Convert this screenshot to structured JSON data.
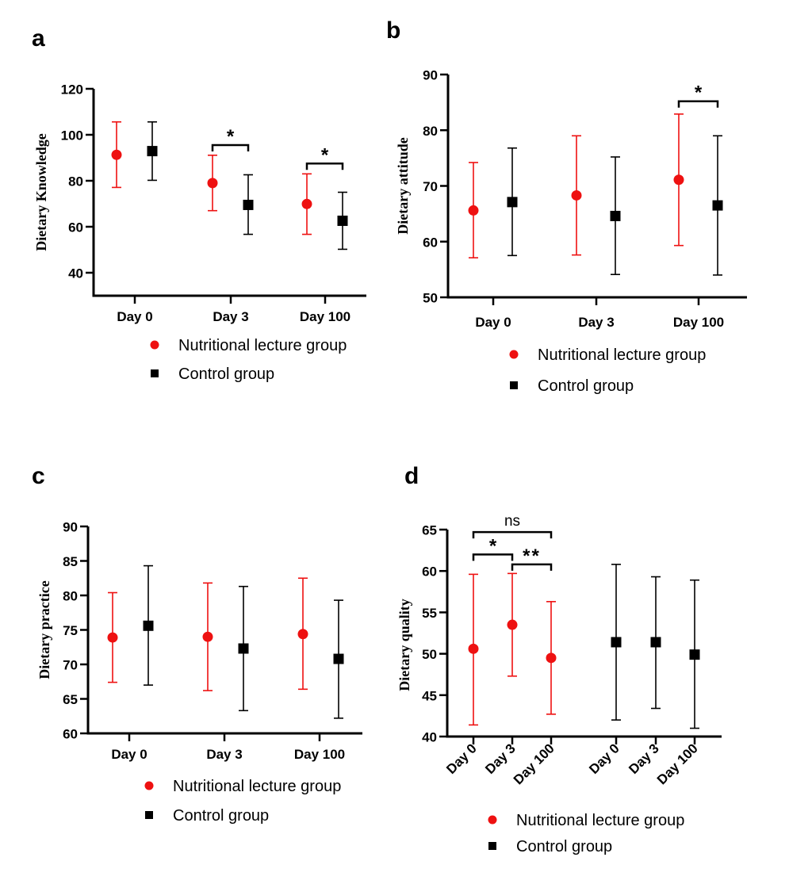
{
  "colors": {
    "intervention": "#ee1111",
    "control": "#000000"
  },
  "chart_data": [
    {
      "panel": "a",
      "type": "scatter",
      "subtype": "mean-with-error-bars",
      "title": "",
      "xlabel": "",
      "ylabel": "Dietary Knowledge",
      "ylim": [
        30,
        120
      ],
      "yticks": [
        40,
        60,
        80,
        100,
        120
      ],
      "categories": [
        "Day 0",
        "Day 3",
        "Day 100"
      ],
      "grid": false,
      "legend_position": "bottom",
      "series": [
        {
          "name": "Nutritional lecture group",
          "marker": "circle",
          "color": "#ee1111",
          "values": [
            91.3,
            79.0,
            69.9
          ],
          "upper": [
            105.6,
            91.1,
            83.0
          ],
          "lower": [
            77.1,
            67.0,
            56.7
          ]
        },
        {
          "name": "Control group",
          "marker": "square",
          "color": "#000000",
          "values": [
            92.9,
            69.5,
            62.6
          ],
          "upper": [
            105.6,
            82.6,
            75.0
          ],
          "lower": [
            80.2,
            56.7,
            50.2
          ]
        }
      ],
      "annotations": [
        {
          "text": "*",
          "between": [
            "Nutritional lecture group@Day 3",
            "Control group@Day 3"
          ],
          "level": 95.5
        },
        {
          "text": "*",
          "between": [
            "Nutritional lecture group@Day 100",
            "Control group@Day 100"
          ],
          "level": 87.5
        }
      ]
    },
    {
      "panel": "b",
      "type": "scatter",
      "subtype": "mean-with-error-bars",
      "title": "",
      "xlabel": "",
      "ylabel": "Dietary attitude",
      "ylim": [
        50,
        90
      ],
      "yticks": [
        50,
        60,
        70,
        80,
        90
      ],
      "categories": [
        "Day 0",
        "Day 3",
        "Day 100"
      ],
      "grid": false,
      "legend_position": "bottom",
      "series": [
        {
          "name": "Nutritional lecture group",
          "marker": "circle",
          "color": "#ee1111",
          "values": [
            65.6,
            68.3,
            71.1
          ],
          "upper": [
            74.2,
            79.0,
            82.9
          ],
          "lower": [
            57.1,
            57.6,
            59.3
          ]
        },
        {
          "name": "Control group",
          "marker": "square",
          "color": "#000000",
          "values": [
            67.1,
            64.6,
            66.5
          ],
          "upper": [
            76.8,
            75.2,
            79.0
          ],
          "lower": [
            57.5,
            54.1,
            54.0
          ]
        }
      ],
      "annotations": [
        {
          "text": "*",
          "between": [
            "Nutritional lecture group@Day 100",
            "Control group@Day 100"
          ],
          "level": 85.2
        }
      ]
    },
    {
      "panel": "c",
      "type": "scatter",
      "subtype": "mean-with-error-bars",
      "title": "",
      "xlabel": "",
      "ylabel": "Dietary practice",
      "ylim": [
        60,
        90
      ],
      "yticks": [
        60,
        65,
        70,
        75,
        80,
        85,
        90
      ],
      "categories": [
        "Day 0",
        "Day 3",
        "Day 100"
      ],
      "grid": false,
      "legend_position": "bottom",
      "series": [
        {
          "name": "Nutritional lecture group",
          "marker": "circle",
          "color": "#ee1111",
          "values": [
            73.9,
            74.0,
            74.4
          ],
          "upper": [
            80.4,
            81.8,
            82.5
          ],
          "lower": [
            67.4,
            66.2,
            66.4
          ]
        },
        {
          "name": "Control group",
          "marker": "square",
          "color": "#000000",
          "values": [
            75.6,
            72.3,
            70.8
          ],
          "upper": [
            84.3,
            81.3,
            79.3
          ],
          "lower": [
            67.0,
            63.3,
            62.2
          ]
        }
      ],
      "annotations": []
    },
    {
      "panel": "d",
      "type": "scatter",
      "subtype": "mean-with-error-bars",
      "title": "",
      "xlabel": "",
      "ylabel": "Dietary quality",
      "ylim": [
        40,
        65
      ],
      "yticks": [
        40,
        45,
        50,
        55,
        60,
        65
      ],
      "categories": [
        "Day 0",
        "Day 3",
        "Day 100",
        "Day 0",
        "Day 3",
        "Day 100"
      ],
      "grid": false,
      "legend_position": "bottom",
      "series": [
        {
          "name": "Nutritional lecture group",
          "marker": "circle",
          "color": "#ee1111",
          "category_index": [
            0,
            1,
            2
          ],
          "values": [
            50.6,
            53.5,
            49.5
          ],
          "upper": [
            59.6,
            59.7,
            56.3
          ],
          "lower": [
            41.4,
            47.3,
            42.7
          ]
        },
        {
          "name": "Control group",
          "marker": "square",
          "color": "#000000",
          "category_index": [
            3,
            4,
            5
          ],
          "values": [
            51.4,
            51.4,
            49.9
          ],
          "upper": [
            60.8,
            59.3,
            58.9
          ],
          "lower": [
            42.0,
            43.4,
            41.0
          ]
        }
      ],
      "annotations": [
        {
          "text": "ns",
          "between": [
            "Day 0",
            "Day 100"
          ],
          "level": 64.7
        },
        {
          "text": "*",
          "between": [
            "Day 0",
            "Day 3"
          ],
          "level": 62.0
        },
        {
          "text": "**",
          "between": [
            "Day 3",
            "Day 100"
          ],
          "level": 60.8
        }
      ]
    }
  ],
  "legend": {
    "items": [
      {
        "label": "Nutritional lecture group",
        "marker": "circle"
      },
      {
        "label": "Control group",
        "marker": "square"
      }
    ]
  }
}
